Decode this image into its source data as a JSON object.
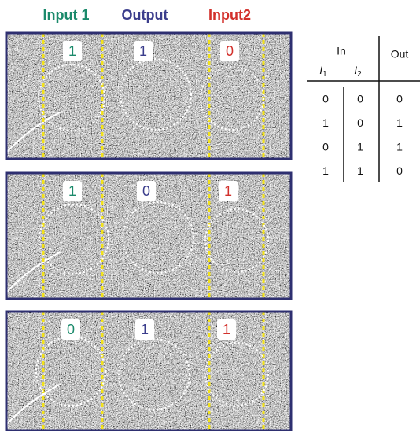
{
  "header": {
    "labels": [
      "Input 1",
      "Output",
      "Input2"
    ]
  },
  "panels": [
    {
      "labels": [
        "1",
        "1",
        "0"
      ]
    },
    {
      "labels": [
        "1",
        "0",
        "1"
      ]
    },
    {
      "labels": [
        "0",
        "1",
        "1"
      ]
    }
  ],
  "table": {
    "group": "In",
    "cols": [
      {
        "name": "I",
        "sub": "1"
      },
      {
        "name": "I",
        "sub": "2"
      }
    ],
    "out": "Out",
    "rows": [
      [
        "0",
        "0",
        "0"
      ],
      [
        "1",
        "0",
        "1"
      ],
      [
        "0",
        "1",
        "1"
      ],
      [
        "1",
        "1",
        "0"
      ]
    ]
  }
}
